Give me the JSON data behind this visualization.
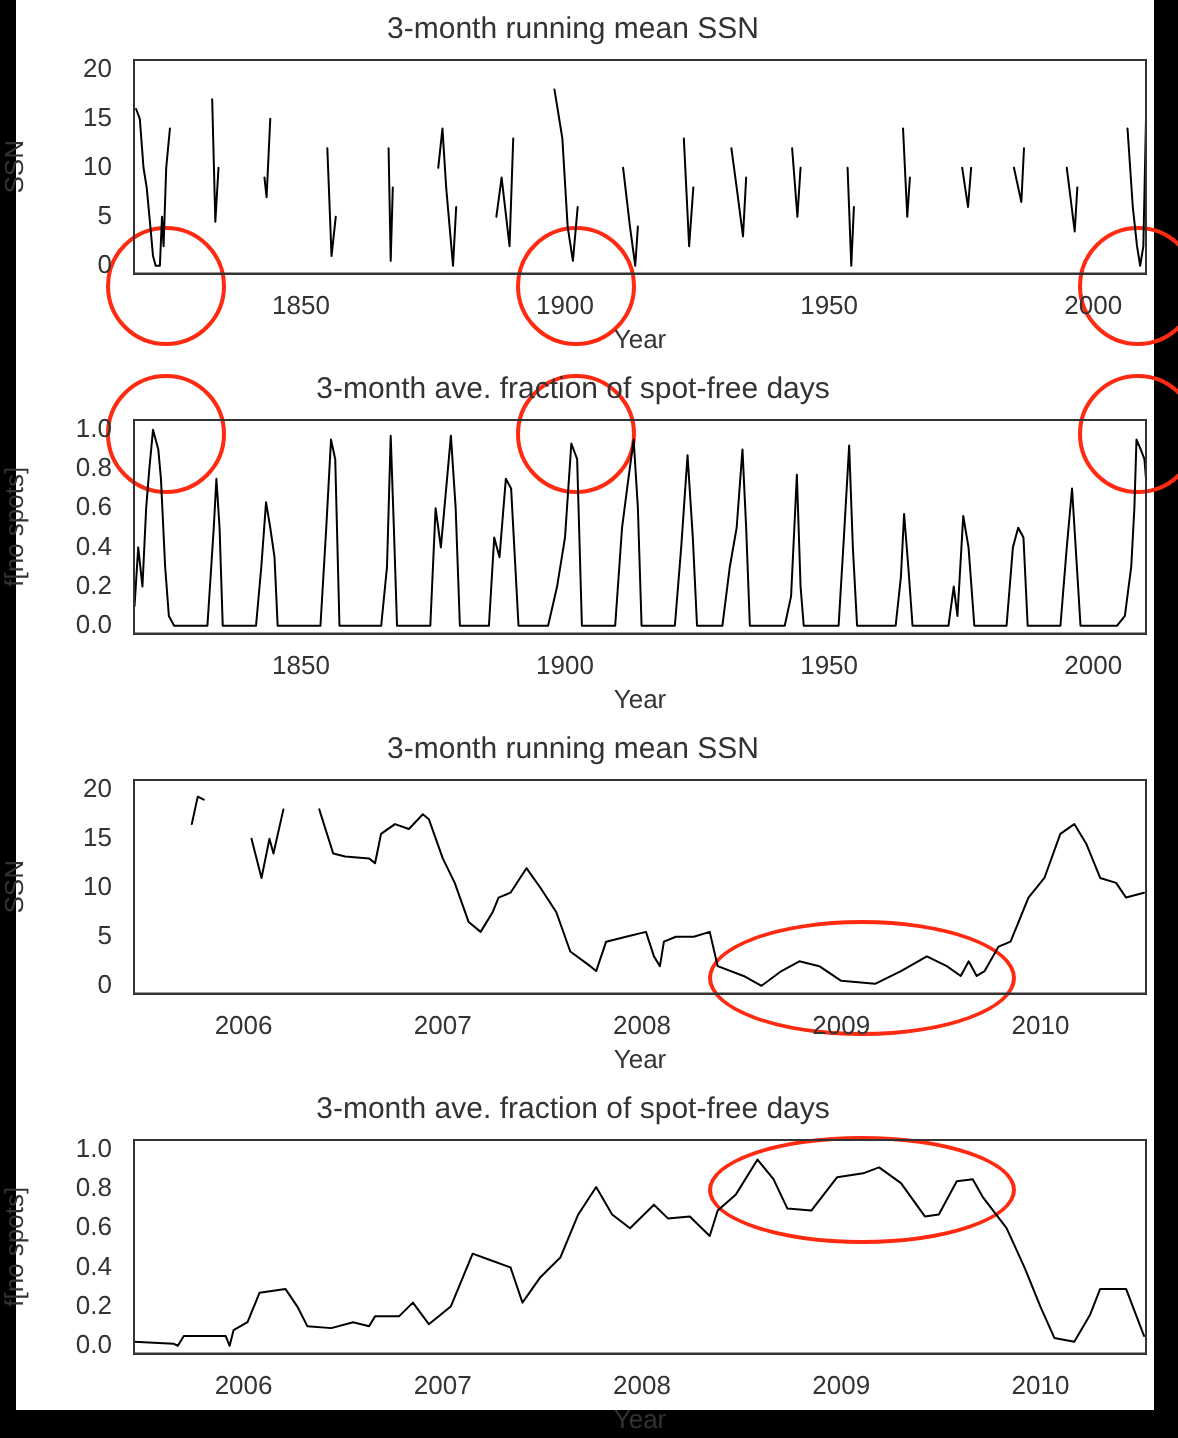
{
  "chart_data": [
    {
      "type": "line",
      "title": "3-month running mean SSN",
      "xlabel": "Year",
      "ylabel": "SSN",
      "color": "#000000",
      "xlim": [
        1818.4,
        2010
      ],
      "xticks": [
        1850,
        1900,
        1950,
        2000
      ],
      "ylim": [
        -0.8,
        21
      ],
      "yticks": [
        0,
        5,
        10,
        15,
        20
      ],
      "x": [
        1818.8,
        1819.5,
        1820.2,
        1820.8,
        1821.5,
        1822,
        1822.5,
        1823.3,
        1823.7,
        1824,
        1824.5,
        1825.2,
        1826,
        1826.1,
        1832.6,
        1833.2,
        1833.8,
        1834.4,
        1835.2,
        1835.3,
        1842.6,
        1843.1,
        1843.5,
        1844.2,
        1845.1,
        1845.2,
        1854.2,
        1855,
        1855.8,
        1856.6,
        1857.8,
        1857.9,
        1865.9,
        1866.6,
        1867,
        1867.4,
        1868,
        1868.1,
        1875.3,
        1876,
        1876.8,
        1877.5,
        1878.8,
        1879.4,
        1880.1,
        1880.2,
        1886.2,
        1887,
        1888,
        1889.5,
        1890.2,
        1891.2,
        1891.3,
        1897.2,
        1898,
        1899.5,
        1900.5,
        1901.5,
        1902.4,
        1903.3,
        1903.4,
        1910,
        1911,
        1912.3,
        1913.3,
        1913.8,
        1914.2,
        1914.3,
        1921.5,
        1922.5,
        1923.5,
        1924.3,
        1925.1,
        1925.2,
        1930.4,
        1931.5,
        1932.5,
        1933.7,
        1934.3,
        1935,
        1935.1,
        1942.2,
        1943,
        1944,
        1944.6,
        1945,
        1945.1,
        1952.7,
        1953.5,
        1954.2,
        1954.7,
        1955.2,
        1955.3,
        1963.4,
        1964,
        1964.8,
        1965.3,
        1965.9,
        1966,
        1974.4,
        1975.2,
        1976.3,
        1976.9,
        1977.6,
        1977.7,
        1984.1,
        1985,
        1986.4,
        1986.9,
        1987.2,
        1987.3,
        1994.1,
        1995,
        1996.5,
        1997,
        1997.6,
        1997.7,
        2005.3,
        2006.5,
        2007.5,
        2008.3,
        2008.9,
        2009.5,
        2010
      ],
      "values": [
        16,
        15,
        10,
        8,
        4,
        1,
        0,
        0,
        5,
        2,
        10,
        14,
        null,
        null,
        null,
        17,
        4.5,
        10,
        null,
        null,
        null,
        9,
        7,
        15,
        null,
        null,
        null,
        12,
        1,
        5,
        null,
        null,
        null,
        12,
        0.5,
        8,
        null,
        null,
        null,
        10,
        14,
        8,
        0,
        6,
        null,
        null,
        null,
        5,
        9,
        2,
        13,
        null,
        null,
        null,
        18,
        13,
        4,
        0.5,
        6,
        null,
        null,
        null,
        10,
        4,
        0,
        4,
        null,
        null,
        null,
        13,
        2,
        8,
        null,
        null,
        null,
        12,
        8,
        3,
        9,
        null,
        null,
        null,
        12,
        5,
        10,
        null,
        null,
        null,
        10,
        0,
        6,
        null,
        null,
        null,
        14,
        5,
        9,
        null,
        null,
        null,
        10,
        6,
        10,
        null,
        null,
        null,
        10,
        6.5,
        12,
        null,
        null,
        null,
        10,
        3.5,
        8,
        null,
        null,
        null,
        14,
        6,
        2,
        0,
        2,
        15
      ]
    },
    {
      "type": "line",
      "title": "3-month ave. fraction of spot-free days",
      "xlabel": "Year",
      "ylabel": "f[no spots]",
      "color": "#000000",
      "xlim": [
        1818.4,
        2010
      ],
      "xticks": [
        1850,
        1900,
        1950,
        2000
      ],
      "ylim": [
        -0.04,
        1.05
      ],
      "yticks": [
        {
          "value": 0,
          "label": "0.0"
        },
        {
          "value": 0.2,
          "label": "0.2"
        },
        {
          "value": 0.4,
          "label": "0.4"
        },
        {
          "value": 0.6,
          "label": "0.6"
        },
        {
          "value": 0.8,
          "label": "0.8"
        },
        {
          "value": 1,
          "label": "1.0"
        }
      ],
      "x": [
        1818.5,
        1819.2,
        1820,
        1820.7,
        1821.3,
        1822,
        1823,
        1823.5,
        1824.3,
        1825,
        1826,
        1832.3,
        1833.5,
        1834,
        1834.6,
        1835.2,
        1841.5,
        1842.5,
        1843.4,
        1844.2,
        1845,
        1845.6,
        1853.7,
        1854.8,
        1855.7,
        1856.5,
        1857.3,
        1865.2,
        1866.3,
        1867,
        1867.6,
        1868.2,
        1874.5,
        1875.5,
        1876.5,
        1877.5,
        1878.4,
        1879.3,
        1880.1,
        1885.6,
        1886.6,
        1887.6,
        1888.8,
        1889.8,
        1890.6,
        1891.2,
        1896.8,
        1898.5,
        1900,
        1901.2,
        1902.3,
        1903.2,
        1909.5,
        1910.8,
        1912,
        1913,
        1913.8,
        1914.5,
        1920.8,
        1922,
        1923.2,
        1924.2,
        1925,
        1929.8,
        1931.2,
        1932.5,
        1933.6,
        1934.3,
        1935,
        1941.6,
        1942.8,
        1943.9,
        1944.6,
        1945.2,
        1951.8,
        1952.8,
        1953.8,
        1954.5,
        1955.3,
        1962.6,
        1963.6,
        1964.2,
        1965,
        1965.8,
        1972.6,
        1973.6,
        1974.3,
        1975.4,
        1976.4,
        1977.5,
        1983.6,
        1984.8,
        1985.8,
        1986.8,
        1987.6,
        1993.8,
        1995,
        1996,
        1996.8,
        1997.6,
        2004.5,
        2006,
        2007.2,
        2007.8,
        2008.2,
        2009,
        2009.7,
        2010
      ],
      "values": [
        0.1,
        0.4,
        0.2,
        0.6,
        0.8,
        1.0,
        0.9,
        0.75,
        0.3,
        0.05,
        0,
        0,
        0.5,
        0.75,
        0.5,
        0,
        0,
        0.3,
        0.63,
        0.5,
        0.35,
        0,
        0,
        0.5,
        0.95,
        0.85,
        0,
        0,
        0.3,
        0.97,
        0.5,
        0,
        0,
        0.6,
        0.4,
        0.7,
        0.97,
        0.6,
        0,
        0,
        0.45,
        0.35,
        0.75,
        0.7,
        0.3,
        0,
        0,
        0.2,
        0.45,
        0.93,
        0.85,
        0,
        0,
        0.5,
        0.75,
        0.95,
        0.6,
        0,
        0,
        0.4,
        0.87,
        0.45,
        0,
        0,
        0.3,
        0.5,
        0.9,
        0.5,
        0,
        0,
        0.15,
        0.77,
        0.2,
        0,
        0,
        0.45,
        0.92,
        0.4,
        0,
        0,
        0.25,
        0.57,
        0.3,
        0,
        0,
        0.2,
        0.05,
        0.56,
        0.4,
        0,
        0,
        0.4,
        0.5,
        0.45,
        0,
        0,
        0.4,
        0.7,
        0.35,
        0,
        0,
        0.05,
        0.3,
        0.6,
        0.95,
        0.9,
        0.85,
        0.75
      ]
    },
    {
      "type": "line",
      "title": "3-month running mean SSN",
      "xlabel": "Year",
      "ylabel": "SSN",
      "color": "#000000",
      "xlim": [
        2005.45,
        2010.53
      ],
      "xticks": [
        2006,
        2007,
        2008,
        2009,
        2010
      ],
      "ylim": [
        -0.8,
        21
      ],
      "yticks": [
        0,
        5,
        10,
        15,
        20
      ],
      "x": [
        2005.74,
        2005.77,
        2005.8,
        2005.82,
        2005.83,
        2005.99,
        2006.04,
        2006.09,
        2006.13,
        2006.15,
        2006.2,
        2006.25,
        2006.26,
        2006.34,
        2006.38,
        2006.45,
        2006.51,
        2006.63,
        2006.66,
        2006.69,
        2006.76,
        2006.83,
        2006.9,
        2006.93,
        2007.0,
        2007.06,
        2007.13,
        2007.19,
        2007.25,
        2007.28,
        2007.34,
        2007.42,
        2007.49,
        2007.57,
        2007.64,
        2007.74,
        2007.77,
        2007.82,
        2007.92,
        2008.02,
        2008.06,
        2008.09,
        2008.11,
        2008.17,
        2008.26,
        2008.34,
        2008.38,
        2008.51,
        2008.6,
        2008.7,
        2008.79,
        2008.89,
        2009.0,
        2009.17,
        2009.3,
        2009.43,
        2009.53,
        2009.6,
        2009.64,
        2009.68,
        2009.72,
        2009.79,
        2009.85,
        2009.94,
        2010.02,
        2010.1,
        2010.17,
        2010.23,
        2010.3,
        2010.38,
        2010.43,
        2010.52
      ],
      "values": [
        16.5,
        19.3,
        19,
        null,
        null,
        null,
        15,
        11,
        15,
        13.5,
        18,
        null,
        null,
        null,
        18,
        13.5,
        13.2,
        13,
        12.5,
        15.5,
        16.5,
        16,
        17.5,
        17,
        13,
        10.5,
        6.5,
        5.5,
        7.5,
        9,
        9.5,
        12,
        10,
        7.5,
        3.5,
        2,
        1.5,
        4.5,
        5,
        5.5,
        3,
        2,
        4.5,
        5,
        5,
        5.5,
        2,
        1,
        0,
        1.5,
        2.5,
        2,
        0.5,
        0.2,
        1.5,
        3,
        2,
        1,
        2.5,
        1,
        1.5,
        4,
        4.5,
        9,
        11,
        15.5,
        16.5,
        14.5,
        11,
        10.5,
        9,
        9.5
      ]
    },
    {
      "type": "line",
      "title": "3-month ave. fraction of spot-free days",
      "xlabel": "Year",
      "ylabel": "f[no spots]",
      "color": "#000000",
      "xlim": [
        2005.45,
        2010.53
      ],
      "xticks": [
        2006,
        2007,
        2008,
        2009,
        2010
      ],
      "ylim": [
        -0.04,
        1.05
      ],
      "yticks": [
        {
          "value": 0,
          "label": "0.0"
        },
        {
          "value": 0.2,
          "label": "0.2"
        },
        {
          "value": 0.4,
          "label": "0.4"
        },
        {
          "value": 0.6,
          "label": "0.6"
        },
        {
          "value": 0.8,
          "label": "0.8"
        },
        {
          "value": 1,
          "label": "1.0"
        }
      ],
      "x": [
        2005.45,
        2005.65,
        2005.67,
        2005.7,
        2005.91,
        2005.93,
        2005.95,
        2006.02,
        2006.08,
        2006.21,
        2006.27,
        2006.32,
        2006.44,
        2006.55,
        2006.63,
        2006.66,
        2006.78,
        2006.85,
        2006.93,
        2007.04,
        2007.15,
        2007.23,
        2007.34,
        2007.4,
        2007.49,
        2007.59,
        2007.68,
        2007.77,
        2007.85,
        2007.94,
        2008.06,
        2008.13,
        2008.24,
        2008.34,
        2008.38,
        2008.47,
        2008.58,
        2008.66,
        2008.73,
        2008.85,
        2008.98,
        2009.11,
        2009.19,
        2009.3,
        2009.42,
        2009.49,
        2009.58,
        2009.66,
        2009.71,
        2009.83,
        2009.92,
        2010.0,
        2010.07,
        2010.17,
        2010.25,
        2010.3,
        2010.43,
        2010.52
      ],
      "values": [
        0.02,
        0.01,
        0,
        0.05,
        0.05,
        0,
        0.08,
        0.12,
        0.27,
        0.29,
        0.2,
        0.1,
        0.09,
        0.12,
        0.1,
        0.15,
        0.15,
        0.22,
        0.11,
        0.2,
        0.47,
        0.44,
        0.4,
        0.22,
        0.35,
        0.45,
        0.67,
        0.81,
        0.67,
        0.6,
        0.72,
        0.65,
        0.66,
        0.56,
        0.69,
        0.77,
        0.95,
        0.85,
        0.7,
        0.69,
        0.86,
        0.88,
        0.91,
        0.83,
        0.66,
        0.67,
        0.84,
        0.85,
        0.76,
        0.6,
        0.4,
        0.2,
        0.04,
        0.02,
        0.16,
        0.29,
        0.29,
        0.05
      ]
    }
  ]
}
